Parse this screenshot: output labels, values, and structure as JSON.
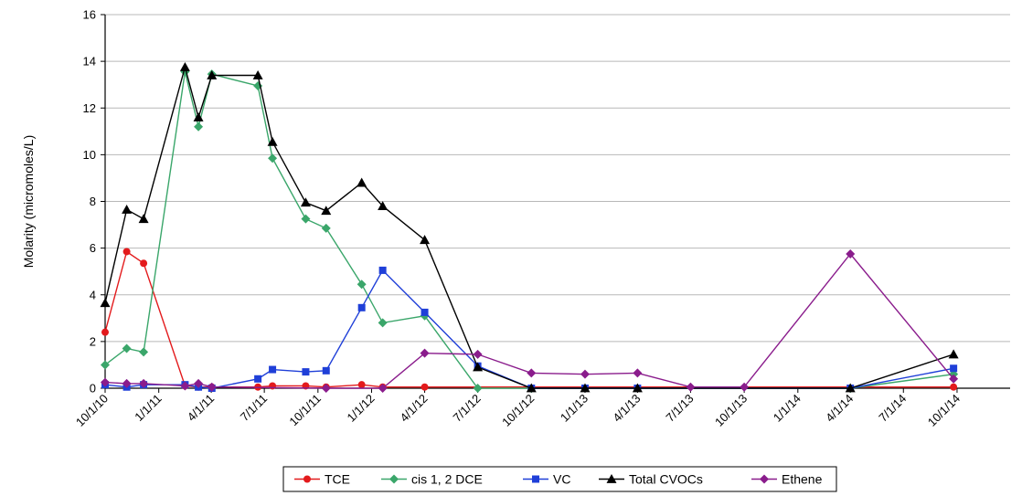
{
  "chart_data": {
    "type": "line",
    "title": "",
    "xlabel": "",
    "ylabel": "Molarity (micromoles/L)",
    "ylim": [
      0,
      16
    ],
    "yticks": [
      "0",
      "2",
      "4",
      "6",
      "8",
      "10",
      "12",
      "14",
      "16"
    ],
    "xlim": [
      "2010-10-01",
      "2014-12-31"
    ],
    "xticks": [
      {
        "date": "2010-10-01",
        "label": "10/1/10"
      },
      {
        "date": "2011-01-01",
        "label": "1/1/11"
      },
      {
        "date": "2011-04-01",
        "label": "4/1/11"
      },
      {
        "date": "2011-07-01",
        "label": "7/1/11"
      },
      {
        "date": "2011-10-01",
        "label": "10/1/11"
      },
      {
        "date": "2012-01-01",
        "label": "1/1/12"
      },
      {
        "date": "2012-04-01",
        "label": "4/1/12"
      },
      {
        "date": "2012-07-01",
        "label": "7/1/12"
      },
      {
        "date": "2012-10-01",
        "label": "10/1/12"
      },
      {
        "date": "2013-01-01",
        "label": "1/1/13"
      },
      {
        "date": "2013-04-01",
        "label": "4/1/13"
      },
      {
        "date": "2013-07-01",
        "label": "7/1/13"
      },
      {
        "date": "2013-10-01",
        "label": "10/1/13"
      },
      {
        "date": "2014-01-01",
        "label": "1/1/14"
      },
      {
        "date": "2014-04-01",
        "label": "4/1/14"
      },
      {
        "date": "2014-07-01",
        "label": "7/1/14"
      },
      {
        "date": "2014-10-01",
        "label": "10/1/14"
      }
    ],
    "grid": "horizontal",
    "legend_position": "bottom",
    "series": [
      {
        "name": "TCE",
        "color": "#e31a1c",
        "marker": "circle",
        "points": [
          [
            "2010-10-01",
            2.4
          ],
          [
            "2010-11-07",
            5.85
          ],
          [
            "2010-12-06",
            5.35
          ],
          [
            "2011-02-15",
            0.1
          ],
          [
            "2011-03-10",
            0.05
          ],
          [
            "2011-04-02",
            0.05
          ],
          [
            "2011-06-20",
            0.05
          ],
          [
            "2011-07-15",
            0.1
          ],
          [
            "2011-09-10",
            0.1
          ],
          [
            "2011-10-15",
            0.05
          ],
          [
            "2011-12-15",
            0.15
          ],
          [
            "2012-01-20",
            0.05
          ],
          [
            "2012-04-01",
            0.05
          ],
          [
            "2014-09-25",
            0.05
          ]
        ]
      },
      {
        "name": "cis 1, 2 DCE",
        "color": "#3aa66a",
        "marker": "diamond",
        "points": [
          [
            "2010-10-01",
            1.0
          ],
          [
            "2010-11-07",
            1.7
          ],
          [
            "2010-12-06",
            1.55
          ],
          [
            "2011-02-15",
            13.55
          ],
          [
            "2011-03-10",
            11.2
          ],
          [
            "2011-04-02",
            13.45
          ],
          [
            "2011-06-20",
            12.95
          ],
          [
            "2011-07-15",
            9.85
          ],
          [
            "2011-09-10",
            7.25
          ],
          [
            "2011-10-15",
            6.85
          ],
          [
            "2011-12-15",
            4.45
          ],
          [
            "2012-01-20",
            2.8
          ],
          [
            "2012-04-01",
            3.1
          ],
          [
            "2012-07-01",
            0.0
          ],
          [
            "2012-10-01",
            0.0
          ],
          [
            "2014-04-01",
            0.0
          ],
          [
            "2014-09-25",
            0.6
          ]
        ]
      },
      {
        "name": "VC",
        "color": "#1f3fd8",
        "marker": "square",
        "points": [
          [
            "2010-10-01",
            0.15
          ],
          [
            "2010-11-07",
            0.05
          ],
          [
            "2010-12-06",
            0.15
          ],
          [
            "2011-02-15",
            0.15
          ],
          [
            "2011-03-10",
            0.05
          ],
          [
            "2011-04-02",
            0.0
          ],
          [
            "2011-06-20",
            0.4
          ],
          [
            "2011-07-15",
            0.8
          ],
          [
            "2011-09-10",
            0.7
          ],
          [
            "2011-10-15",
            0.75
          ],
          [
            "2011-12-15",
            3.45
          ],
          [
            "2012-01-20",
            5.05
          ],
          [
            "2012-04-01",
            3.25
          ],
          [
            "2012-07-01",
            0.95
          ],
          [
            "2012-10-01",
            0.0
          ],
          [
            "2013-01-01",
            0.0
          ],
          [
            "2013-04-01",
            0.0
          ],
          [
            "2014-04-01",
            0.0
          ],
          [
            "2014-09-25",
            0.85
          ]
        ]
      },
      {
        "name": "Total CVOCs",
        "color": "#000000",
        "marker": "triangle",
        "points": [
          [
            "2010-10-01",
            3.65
          ],
          [
            "2010-11-07",
            7.65
          ],
          [
            "2010-12-06",
            7.25
          ],
          [
            "2011-02-15",
            13.75
          ],
          [
            "2011-03-10",
            11.6
          ],
          [
            "2011-04-02",
            13.4
          ],
          [
            "2011-06-20",
            13.4
          ],
          [
            "2011-07-15",
            10.55
          ],
          [
            "2011-09-10",
            7.95
          ],
          [
            "2011-10-15",
            7.6
          ],
          [
            "2011-12-15",
            8.8
          ],
          [
            "2012-01-20",
            7.8
          ],
          [
            "2012-04-01",
            6.35
          ],
          [
            "2012-07-01",
            0.9
          ],
          [
            "2012-10-01",
            0.0
          ],
          [
            "2013-01-01",
            0.0
          ],
          [
            "2013-04-01",
            0.0
          ],
          [
            "2014-04-01",
            0.0
          ],
          [
            "2014-09-25",
            1.45
          ]
        ]
      },
      {
        "name": "Ethene",
        "color": "#8a1c8c",
        "marker": "diamond",
        "points": [
          [
            "2010-10-01",
            0.25
          ],
          [
            "2010-11-07",
            0.2
          ],
          [
            "2010-12-06",
            0.2
          ],
          [
            "2011-02-15",
            0.1
          ],
          [
            "2011-03-10",
            0.2
          ],
          [
            "2011-04-02",
            0.05
          ],
          [
            "2011-10-15",
            0.0
          ],
          [
            "2012-01-20",
            0.0
          ],
          [
            "2012-04-01",
            1.5
          ],
          [
            "2012-07-01",
            1.45
          ],
          [
            "2012-10-01",
            0.65
          ],
          [
            "2013-01-01",
            0.6
          ],
          [
            "2013-04-01",
            0.65
          ],
          [
            "2013-07-01",
            0.05
          ],
          [
            "2013-10-01",
            0.05
          ],
          [
            "2014-04-01",
            5.75
          ],
          [
            "2014-09-25",
            0.4
          ]
        ]
      }
    ]
  }
}
